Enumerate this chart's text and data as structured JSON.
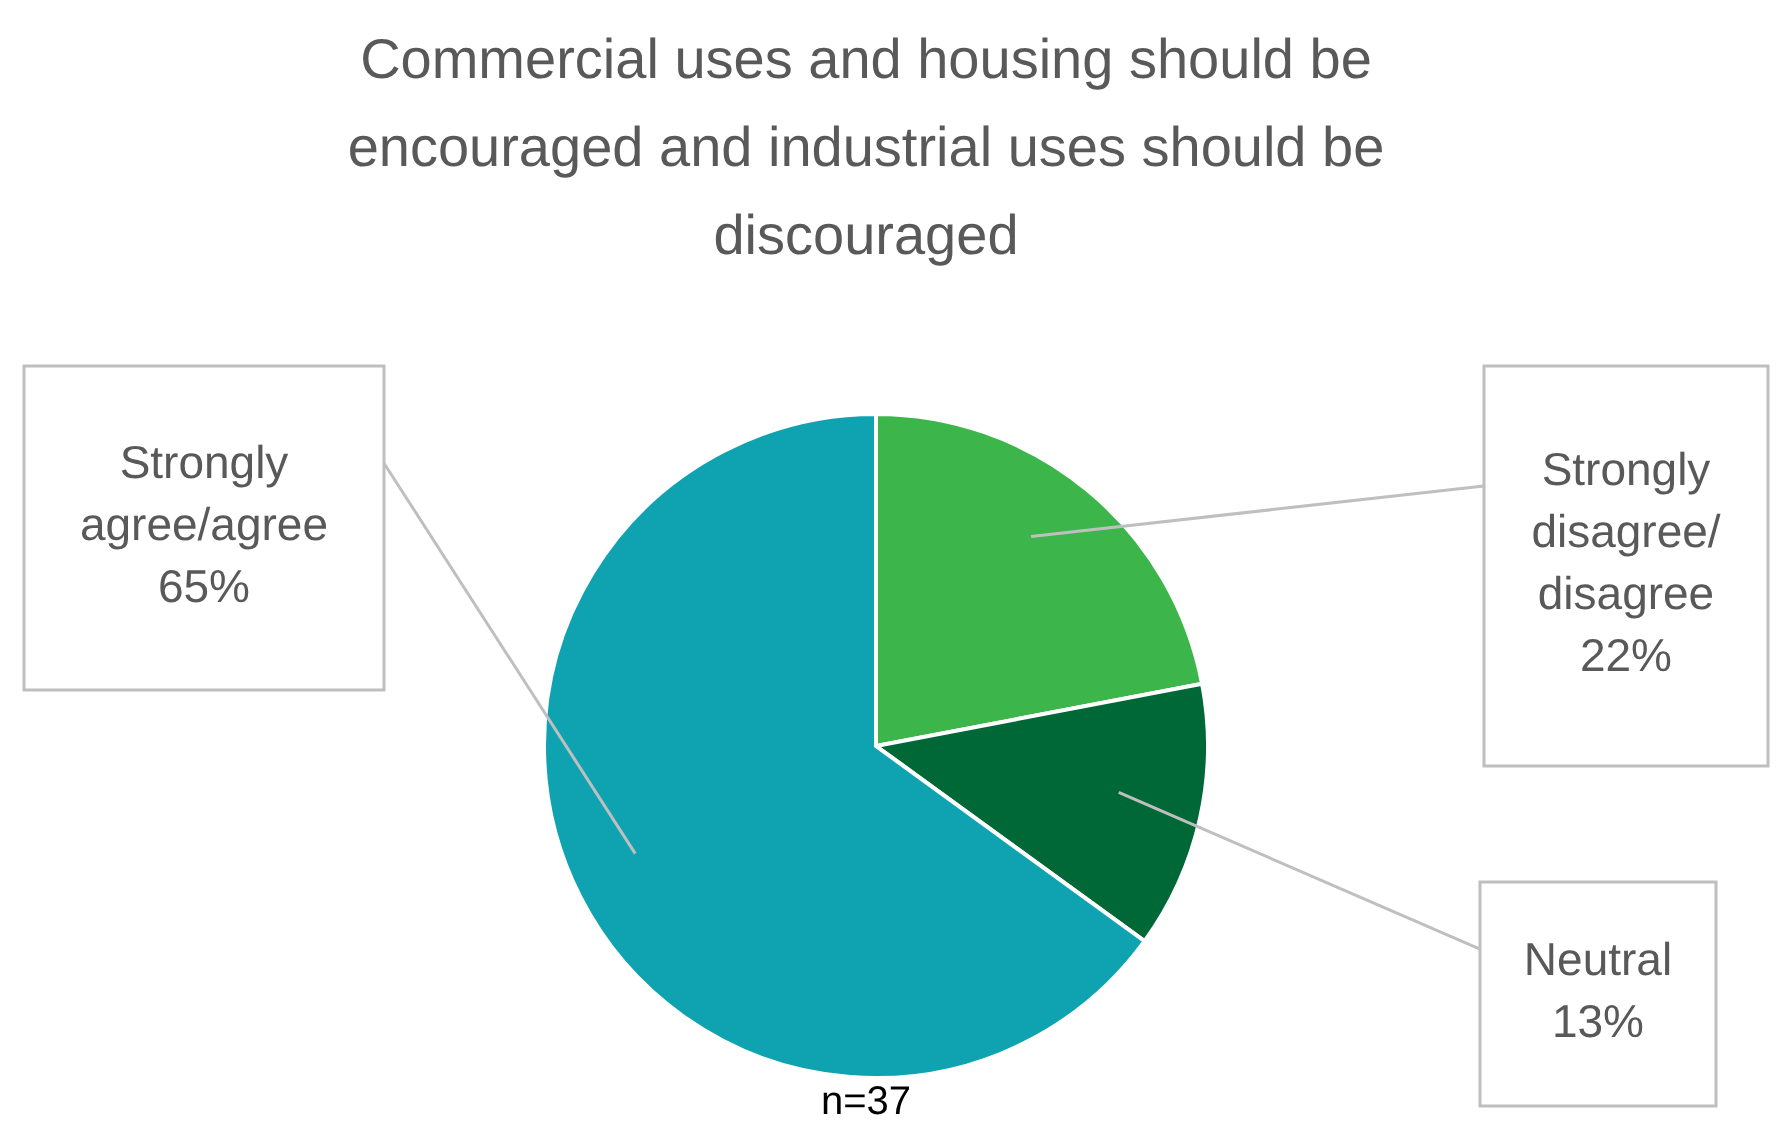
{
  "chart_data": {
    "type": "pie",
    "title": "Commercial uses and housing should be encouraged and industrial uses should be discouraged",
    "categories": [
      "Strongly disagree/disagree",
      "Neutral",
      "Strongly agree/agree"
    ],
    "values": [
      22,
      13,
      65
    ],
    "value_labels": [
      "22%",
      "13%",
      "65%"
    ],
    "colors": [
      "#3cb64a",
      "#006837",
      "#0fa3b1"
    ],
    "annotations": [
      "n=37"
    ]
  }
}
